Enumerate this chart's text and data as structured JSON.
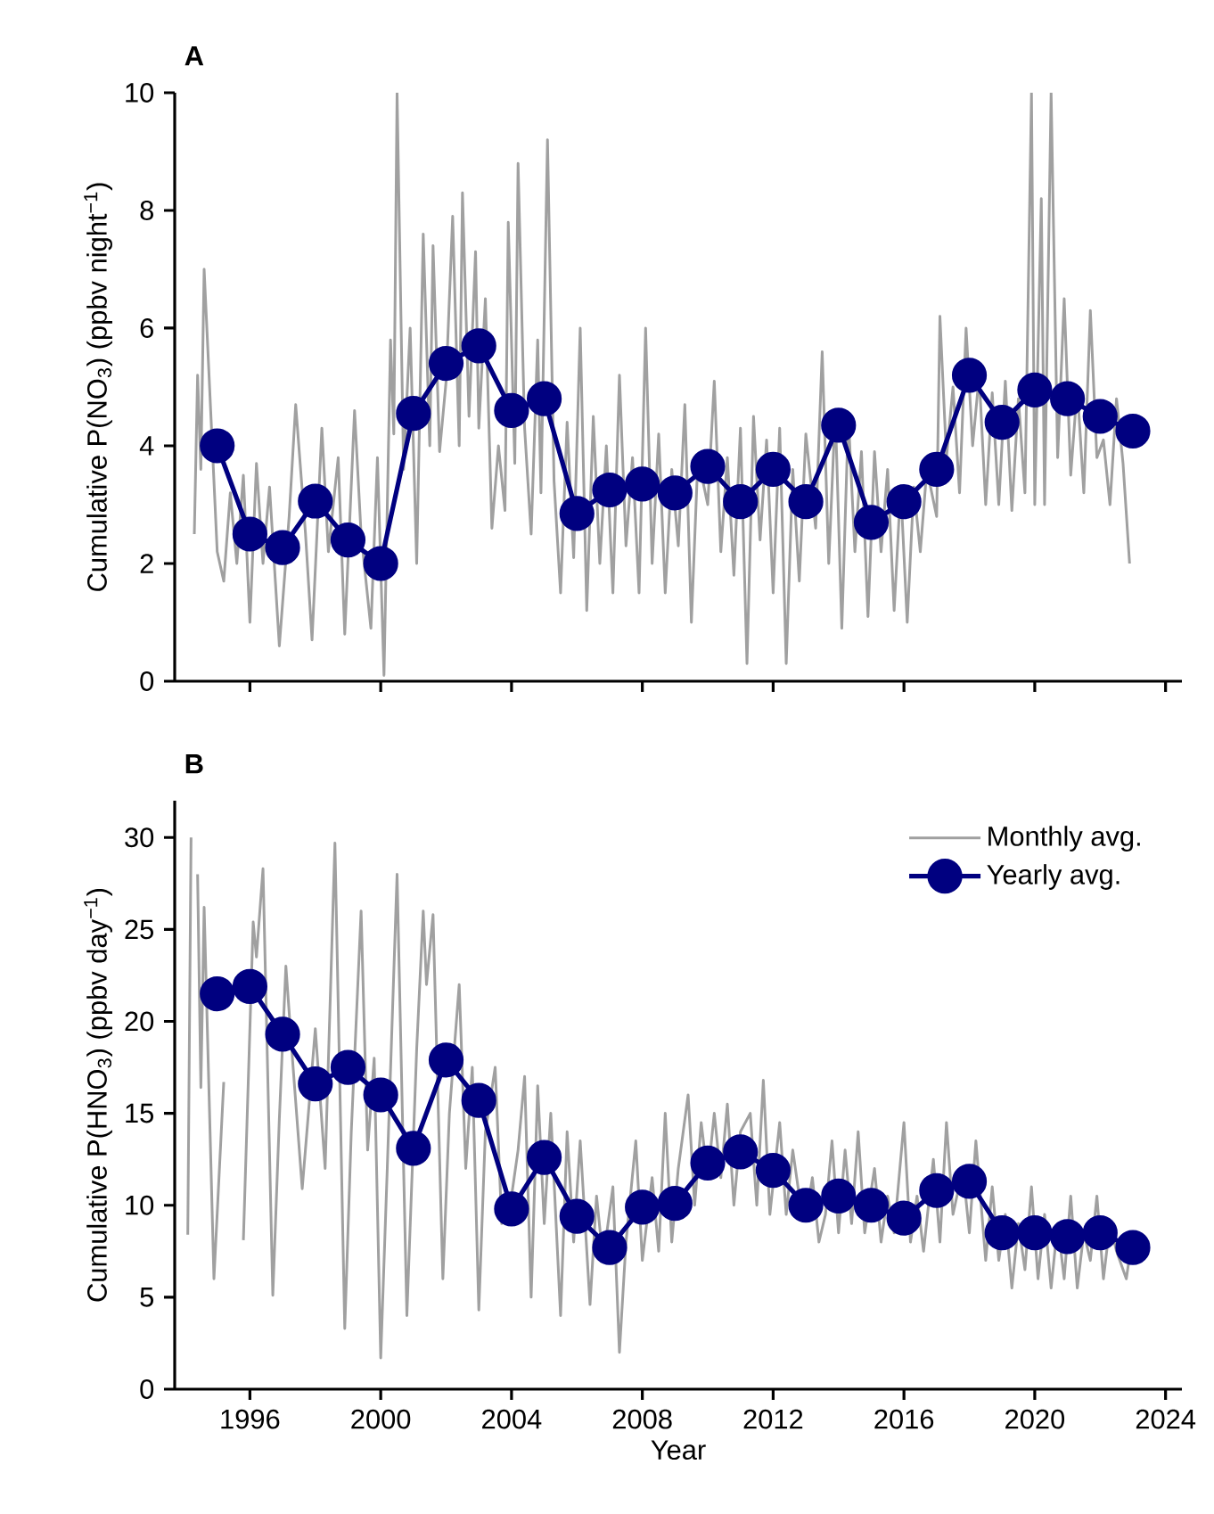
{
  "chart_data": [
    {
      "type": "line",
      "title": "A",
      "ylabel": "Cumulative P(NO$_{3}$) (ppbv night$^{−1}$)",
      "xlim": [
        1993.7,
        2024.5
      ],
      "xticks": [
        1996,
        2000,
        2004,
        2008,
        2012,
        2016,
        2020,
        2024
      ],
      "ylim": [
        0,
        10
      ],
      "yticks": [
        0,
        2,
        4,
        6,
        8,
        10
      ],
      "tick_labels": "y",
      "series": [
        {
          "color": "#a0a0a0",
          "marker": "none",
          "x": [
            1994.3,
            1994.4,
            1994.5,
            1994.6,
            1994.8,
            1995.0,
            1995.2,
            1995.4,
            1995.6,
            1995.8,
            1996.0,
            1996.2,
            1996.4,
            1996.6,
            1996.9,
            1997.2,
            1997.4,
            1997.7,
            1997.9,
            1998.2,
            1998.4,
            1998.7,
            1998.9,
            1999.2,
            1999.4,
            1999.7,
            1999.9,
            2000.1,
            2000.3,
            2000.4,
            2000.5,
            2000.7,
            2000.9,
            2001.1,
            2001.3,
            2001.5,
            2001.6,
            2001.8,
            2002.0,
            2002.2,
            2002.4,
            2002.5,
            2002.7,
            2002.9,
            2003.0,
            2003.2,
            2003.4,
            2003.6,
            2003.8,
            2003.9,
            2004.1,
            2004.2,
            2004.4,
            2004.6,
            2004.8,
            2004.9,
            2005.1,
            2005.3,
            2005.5,
            2005.7,
            2005.9,
            2006.1,
            2006.3,
            2006.5,
            2006.7,
            2006.9,
            2007.1,
            2007.3,
            2007.5,
            2007.7,
            2007.9,
            2008.1,
            2008.3,
            2008.5,
            2008.7,
            2008.9,
            2009.1,
            2009.3,
            2009.5,
            2009.7,
            2010.0,
            2010.2,
            2010.4,
            2010.6,
            2010.8,
            2011.0,
            2011.2,
            2011.4,
            2011.6,
            2011.8,
            2012.0,
            2012.2,
            2012.4,
            2012.6,
            2012.8,
            2013.0,
            2013.3,
            2013.5,
            2013.7,
            2013.9,
            2014.1,
            2014.3,
            2014.5,
            2014.7,
            2014.9,
            2015.1,
            2015.3,
            2015.5,
            2015.7,
            2015.9,
            2016.1,
            2016.3,
            2016.5,
            2016.7,
            2017.0,
            2017.1,
            2017.3,
            2017.5,
            2017.7,
            2017.9,
            2018.1,
            2018.3,
            2018.5,
            2018.7,
            2018.9,
            2019.1,
            2019.3,
            2019.5,
            2019.7,
            2019.9,
            2020.0,
            2020.2,
            2020.3,
            2020.5,
            2020.7,
            2020.9,
            2021.1,
            2021.3,
            2021.5,
            2021.7,
            2021.9,
            2022.1,
            2022.3,
            2022.5,
            2022.7,
            2022.9
          ],
          "values": [
            2.5,
            5.2,
            3.6,
            7.0,
            4.6,
            2.2,
            1.7,
            3.2,
            2.0,
            3.5,
            1.0,
            3.7,
            2.0,
            3.3,
            0.6,
            2.8,
            4.7,
            2.5,
            0.7,
            4.3,
            2.2,
            3.8,
            0.8,
            4.6,
            2.5,
            0.9,
            3.8,
            0.1,
            5.8,
            4.2,
            10.0,
            3.6,
            6.0,
            2.0,
            7.6,
            4.0,
            7.4,
            3.9,
            5.1,
            7.9,
            4.0,
            8.3,
            4.5,
            7.3,
            4.3,
            6.5,
            2.6,
            4.0,
            2.9,
            7.8,
            3.7,
            8.8,
            4.3,
            2.5,
            5.8,
            3.2,
            9.2,
            3.4,
            1.5,
            4.4,
            2.1,
            6.0,
            1.2,
            4.5,
            2.0,
            4.0,
            1.5,
            5.2,
            2.3,
            3.8,
            1.5,
            6.0,
            2.0,
            4.2,
            1.5,
            3.6,
            2.3,
            4.7,
            1.0,
            3.8,
            3.0,
            5.1,
            2.2,
            3.8,
            1.8,
            4.3,
            0.3,
            4.5,
            2.4,
            4.1,
            1.5,
            4.3,
            0.3,
            3.6,
            1.7,
            4.2,
            2.6,
            5.6,
            2.0,
            4.6,
            0.9,
            4.5,
            2.2,
            3.9,
            1.1,
            3.9,
            2.2,
            3.6,
            1.2,
            3.3,
            1.0,
            3.3,
            2.2,
            3.6,
            2.8,
            6.2,
            3.8,
            5.0,
            3.2,
            6.0,
            4.0,
            5.2,
            3.0,
            4.9,
            3.0,
            5.1,
            2.9,
            4.8,
            3.2,
            10.0,
            3.0,
            8.2,
            3.0,
            10.0,
            3.8,
            6.5,
            3.5,
            5.0,
            3.2,
            6.3,
            3.8,
            4.1,
            3.0,
            4.8,
            3.7,
            2.0
          ]
        },
        {
          "color": "#000080",
          "marker": "circle",
          "x": [
            1995,
            1996,
            1997,
            1998,
            1999,
            2000,
            2001,
            2002,
            2003,
            2004,
            2005,
            2006,
            2007,
            2008,
            2009,
            2010,
            2011,
            2012,
            2013,
            2014,
            2015,
            2016,
            2017,
            2018,
            2019,
            2020,
            2021,
            2022,
            2023
          ],
          "values": [
            4.0,
            2.5,
            2.27,
            3.06,
            2.4,
            2.0,
            4.55,
            5.4,
            5.7,
            4.6,
            4.8,
            2.85,
            3.25,
            3.35,
            3.2,
            3.65,
            3.05,
            3.6,
            3.05,
            4.35,
            2.7,
            3.05,
            3.6,
            5.2,
            4.4,
            4.95,
            4.8,
            4.5,
            4.25
          ]
        }
      ]
    },
    {
      "type": "line",
      "title": "B",
      "xlabel": "Year",
      "ylabel": "Cumulative P(HNO$_{3}$) (ppbv day$^{−1}$)",
      "xlim": [
        1993.7,
        2024.5
      ],
      "xticks": [
        1996,
        2000,
        2004,
        2008,
        2012,
        2016,
        2020,
        2024
      ],
      "ylim": [
        0,
        32
      ],
      "yticks": [
        0,
        5,
        10,
        15,
        20,
        25,
        30
      ],
      "legend": "top right",
      "series": [
        {
          "name": "Monthly avg.",
          "color": "#a0a0a0",
          "marker": "none",
          "x": [
            1994.1,
            1994.2,
            1994.3,
            1994.4,
            1994.5,
            1994.6,
            1994.9,
            1995.2,
            1995.4,
            1995.6,
            1995.8,
            1996.1,
            1996.2,
            1996.4,
            1996.7,
            1996.9,
            1997.1,
            1997.3,
            1997.6,
            1998.0,
            1998.3,
            1998.6,
            1998.9,
            1999.1,
            1999.4,
            1999.6,
            1999.8,
            2000.0,
            2000.2,
            2000.5,
            2000.8,
            2001.1,
            2001.3,
            2001.4,
            2001.6,
            2001.9,
            2002.1,
            2002.4,
            2002.6,
            2002.8,
            2003.0,
            2003.2,
            2003.5,
            2003.7,
            2004.0,
            2004.2,
            2004.4,
            2004.6,
            2004.8,
            2005.0,
            2005.2,
            2005.5,
            2005.7,
            2005.9,
            2006.1,
            2006.4,
            2006.6,
            2006.8,
            2007.1,
            2007.3,
            2007.5,
            2007.8,
            2008.0,
            2008.3,
            2008.5,
            2008.7,
            2008.9,
            2009.1,
            2009.4,
            2009.6,
            2009.8,
            2010.0,
            2010.2,
            2010.4,
            2010.6,
            2010.8,
            2011.0,
            2011.3,
            2011.5,
            2011.7,
            2011.9,
            2012.2,
            2012.4,
            2012.6,
            2012.8,
            2013.0,
            2013.2,
            2013.4,
            2013.6,
            2013.8,
            2014.0,
            2014.2,
            2014.4,
            2014.6,
            2014.8,
            2015.1,
            2015.3,
            2015.5,
            2015.7,
            2016.0,
            2016.2,
            2016.4,
            2016.6,
            2016.9,
            2017.1,
            2017.3,
            2017.5,
            2017.8,
            2018.0,
            2018.2,
            2018.5,
            2018.7,
            2018.9,
            2019.1,
            2019.3,
            2019.5,
            2019.7,
            2019.9,
            2020.1,
            2020.3,
            2020.5,
            2020.7,
            2020.9,
            2021.1,
            2021.3,
            2021.5,
            2021.7,
            2021.9,
            2022.1,
            2022.3,
            2022.5,
            2022.8,
            2023.0
          ],
          "values": [
            8.4,
            30.0,
            null,
            28,
            16.4,
            26.2,
            6.0,
            16.7,
            null,
            null,
            8.1,
            25.4,
            23.5,
            28.3,
            5.1,
            14.7,
            23.0,
            18.0,
            10.9,
            19.6,
            12.0,
            29.7,
            3.3,
            14.0,
            26.0,
            13.0,
            18.0,
            1.7,
            12.0,
            28.0,
            4.0,
            18.5,
            26.0,
            22.0,
            25.8,
            6.0,
            15.0,
            22.0,
            12.0,
            17.5,
            4.3,
            14.0,
            17.5,
            9.0,
            10.5,
            13.0,
            17.0,
            5.0,
            16.5,
            9.0,
            15.0,
            4.0,
            14.0,
            8.0,
            13.5,
            4.6,
            10.5,
            7.0,
            11.0,
            2.0,
            8.0,
            13.5,
            7.0,
            11.5,
            7.5,
            15.0,
            8.0,
            12.0,
            16.0,
            10.0,
            14.5,
            11.5,
            15.0,
            11.5,
            15.5,
            10.0,
            14.0,
            15.0,
            10.0,
            16.8,
            9.5,
            14.5,
            9.5,
            13.0,
            10.5,
            9.2,
            11.5,
            8.0,
            9.5,
            13.5,
            8.5,
            13.0,
            9.0,
            14.0,
            8.5,
            12.0,
            8.0,
            10.5,
            8.5,
            14.5,
            8.0,
            10.5,
            7.5,
            12.5,
            8.0,
            14.5,
            9.5,
            12.0,
            8.5,
            13.5,
            7.0,
            11.0,
            7.0,
            9.5,
            5.5,
            9.0,
            6.5,
            11.0,
            6.0,
            9.5,
            5.5,
            9.0,
            6.0,
            10.5,
            5.5,
            8.5,
            7.0,
            10.5,
            6.0,
            9.0,
            7.5,
            6.0,
            8.5
          ]
        },
        {
          "name": "Yearly avg.",
          "color": "#000080",
          "marker": "circle",
          "x": [
            1995,
            1996,
            1997,
            1998,
            1999,
            2000,
            2001,
            2002,
            2003,
            2004,
            2005,
            2006,
            2007,
            2008,
            2009,
            2010,
            2011,
            2012,
            2013,
            2014,
            2015,
            2016,
            2017,
            2018,
            2019,
            2020,
            2021,
            2022,
            2023
          ],
          "values": [
            21.5,
            21.9,
            19.3,
            16.6,
            17.5,
            16.0,
            13.1,
            17.9,
            15.7,
            9.8,
            12.6,
            9.4,
            7.7,
            9.9,
            10.1,
            12.3,
            12.9,
            11.9,
            10.0,
            10.5,
            10.0,
            9.3,
            10.8,
            11.3,
            8.5,
            8.5,
            8.3,
            8.5,
            7.7
          ]
        }
      ]
    }
  ]
}
